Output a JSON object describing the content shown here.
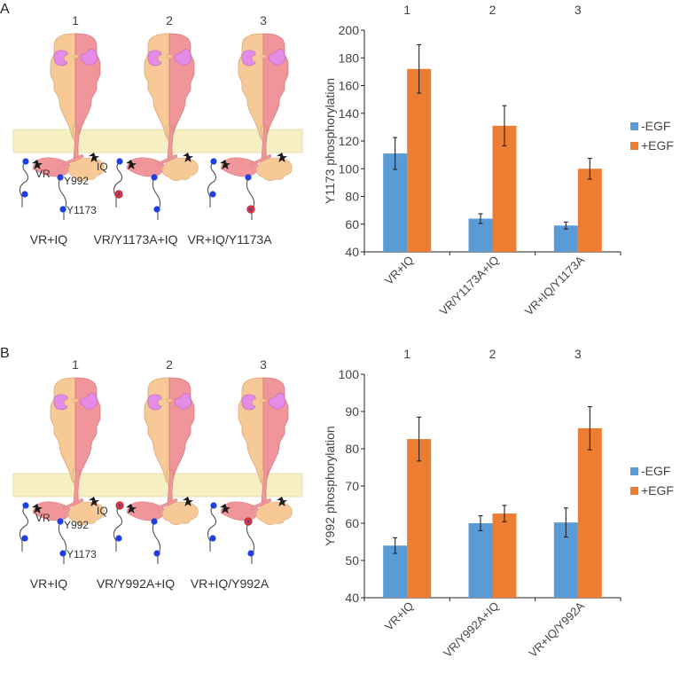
{
  "colors": {
    "minus_egf": "#5b9bd5",
    "plus_egf": "#ed7d31",
    "membrane": "#f7efc4",
    "subunit_a": "#f6c996",
    "subunit_b": "#f0969a",
    "ligand": "#e48ce8",
    "phospho_site": "#1f3fe6",
    "mutated_site": "#e0383e",
    "activation_star": "#1a1a1a"
  },
  "panels": [
    {
      "panel_label": "A",
      "diagram": {
        "columns": [
          {
            "number": "1",
            "label": "VR+IQ",
            "vr_tail_site": "phospho",
            "y992_site": "phospho",
            "y1173_site": "phospho"
          },
          {
            "number": "2",
            "label": "VR/Y1173A+IQ",
            "vr_tail_site": "mutated",
            "y992_site": "phospho",
            "y1173_site": "phospho"
          },
          {
            "number": "3",
            "label": "VR+IQ/Y1173A",
            "vr_tail_site": "phospho",
            "y992_site": "phospho",
            "y1173_site": "mutated"
          }
        ],
        "annotations": {
          "vr": "VR",
          "iq": "IQ",
          "y992": "Y992",
          "y1173": "Y1173"
        }
      }
    },
    {
      "panel_label": "B",
      "diagram": {
        "columns": [
          {
            "number": "1",
            "label": "VR+IQ",
            "vr_tail_site": "phospho",
            "vr_top_site": "phospho",
            "y992_site": "phospho",
            "y1173_site": "phospho"
          },
          {
            "number": "2",
            "label": "VR/Y992A+IQ",
            "vr_tail_site": "phospho",
            "vr_top_site": "mutated",
            "y992_site": "phospho",
            "y1173_site": "phospho"
          },
          {
            "number": "3",
            "label": "VR+IQ/Y992A",
            "vr_tail_site": "phospho",
            "vr_top_site": "phospho",
            "y992_site": "mutated",
            "y1173_site": "phospho"
          }
        ],
        "annotations": {
          "vr": "VR",
          "iq": "IQ",
          "y992": "Y992",
          "y1173": "Y1173"
        }
      }
    }
  ],
  "chart_data": [
    {
      "type": "bar",
      "title": "",
      "column_numbers": [
        "1",
        "2",
        "3"
      ],
      "categories": [
        "VR+IQ",
        "VR/Y1173A+IQ",
        "VR+IQ/Y1173A"
      ],
      "ylabel": "Y1173 phosphorylation",
      "xlabel": "",
      "ylim": [
        40,
        200
      ],
      "yticks": [
        40,
        60,
        80,
        100,
        120,
        140,
        160,
        180,
        200
      ],
      "grid": false,
      "legend": "right",
      "series": [
        {
          "name": "-EGF",
          "values": [
            111,
            64,
            59
          ],
          "errors": [
            11.5,
            3.5,
            2.5
          ]
        },
        {
          "name": "+EGF",
          "values": [
            172,
            131,
            100
          ],
          "errors": [
            17.5,
            14.5,
            7.5
          ]
        }
      ]
    },
    {
      "type": "bar",
      "title": "",
      "column_numbers": [
        "1",
        "2",
        "3"
      ],
      "categories": [
        "VR+IQ",
        "VR/Y992A+IQ",
        "VR+IQ/Y992A"
      ],
      "ylabel": "Y992 phosphorylation",
      "xlabel": "",
      "ylim": [
        40,
        100
      ],
      "yticks": [
        40,
        50,
        60,
        70,
        80,
        90,
        100
      ],
      "grid": false,
      "legend": "right",
      "series": [
        {
          "name": "-EGF",
          "values": [
            54,
            60,
            60.2
          ],
          "errors": [
            2.1,
            2.0,
            3.9
          ]
        },
        {
          "name": "+EGF",
          "values": [
            82.6,
            62.6,
            85.5
          ],
          "errors": [
            5.9,
            2.2,
            5.8
          ]
        }
      ]
    }
  ]
}
